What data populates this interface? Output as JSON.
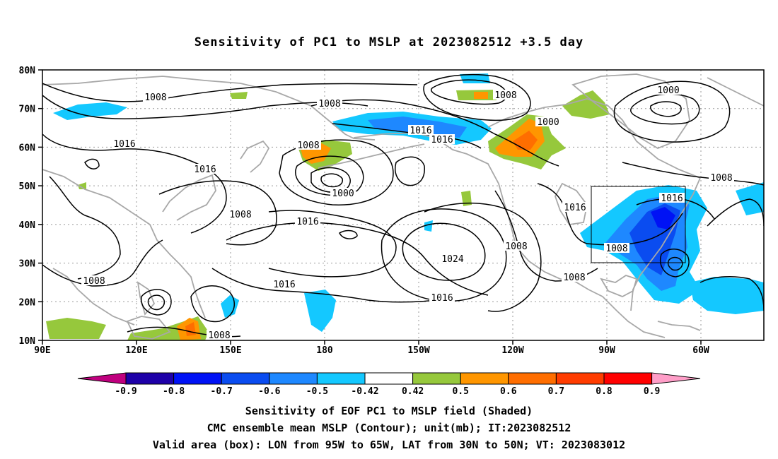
{
  "title": "Sensitivity of PC1 to MSLP at 2023082512 +3.5 day",
  "axes": {
    "x_ticks": [
      "90E",
      "120E",
      "150E",
      "180",
      "150W",
      "120W",
      "90W",
      "60W"
    ],
    "y_ticks": [
      "80N",
      "70N",
      "60N",
      "50N",
      "40N",
      "30N",
      "20N",
      "10N"
    ],
    "lon_range": "90E to 48W",
    "lat_range": "10N to 80N",
    "grid": true
  },
  "contour_labels": [
    {
      "text": "1008"
    },
    {
      "text": "1008"
    },
    {
      "text": "1000"
    },
    {
      "text": "1000"
    },
    {
      "text": "1016"
    },
    {
      "text": "1016"
    },
    {
      "text": "1008"
    },
    {
      "text": "1016"
    },
    {
      "text": "1016"
    },
    {
      "text": "1008"
    },
    {
      "text": "1000"
    },
    {
      "text": "1008"
    },
    {
      "text": "1016"
    },
    {
      "text": "1024"
    },
    {
      "text": "1016"
    },
    {
      "text": "1016"
    },
    {
      "text": "1008"
    },
    {
      "text": "1008"
    },
    {
      "text": "1008"
    },
    {
      "text": "1016"
    },
    {
      "text": "1016"
    },
    {
      "text": "1008"
    },
    {
      "text": "1008"
    },
    {
      "text": "1008"
    },
    {
      "text": "1008"
    }
  ],
  "colorbar": {
    "labels": [
      "-0.9",
      "-0.8",
      "-0.7",
      "-0.6",
      "-0.5",
      "-0.42",
      "0.42",
      "0.5",
      "0.6",
      "0.7",
      "0.8",
      "0.9"
    ],
    "colors": [
      "#c0007f",
      "#1e00a8",
      "#0012f5",
      "#0a4cf0",
      "#1e88ff",
      "#14c8ff",
      "#ffffff",
      "#96c83c",
      "#ff9600",
      "#ff6e00",
      "#ff3c00",
      "#ff0000",
      "#ff9ec8"
    ]
  },
  "valid_box": {
    "lon": "95W to 65W",
    "lat": "30N to 50N"
  },
  "captions": [
    "Sensitivity of EOF PC1 to MSLP field (Shaded)",
    "CMC ensemble mean MSLP (Contour); unit(mb); IT:2023082512",
    "Valid area (box): LON from 95W to 65W, LAT from 30N to 50N; VT: 2023083012"
  ]
}
